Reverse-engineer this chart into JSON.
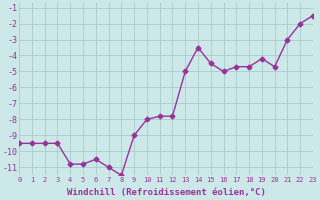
{
  "x": [
    0,
    1,
    2,
    3,
    4,
    5,
    6,
    7,
    8,
    9,
    10,
    11,
    12,
    13,
    14,
    15,
    16,
    17,
    18,
    19,
    20,
    21,
    22,
    23
  ],
  "y": [
    -9.5,
    -9.5,
    -9.5,
    -9.5,
    -10.8,
    -10.8,
    -10.5,
    -11.0,
    -11.5,
    -9.0,
    -8.0,
    -7.8,
    -7.8,
    -5.0,
    -3.5,
    -4.5,
    -5.0,
    -4.7,
    -4.7,
    -4.2,
    -4.7,
    -3.0,
    -2.0,
    -1.5
  ],
  "xlim": [
    0,
    23
  ],
  "ylim": [
    -11.5,
    -0.7
  ],
  "yticks": [
    -11,
    -10,
    -9,
    -8,
    -7,
    -6,
    -5,
    -4,
    -3,
    -2,
    -1
  ],
  "xtick_labels": [
    "0",
    "1",
    "2",
    "3",
    "4",
    "5",
    "6",
    "7",
    "8",
    "9",
    "10",
    "11",
    "12",
    "13",
    "14",
    "15",
    "16",
    "17",
    "18",
    "19",
    "20",
    "21",
    "22",
    "23"
  ],
  "xlabel": "Windchill (Refroidissement éolien,°C)",
  "line_color": "#993399",
  "marker": "D",
  "marker_size": 2.5,
  "bg_color": "#cce8e8",
  "grid_color": "#aacccc",
  "line_width": 1.0,
  "xtick_fontsize": 5.0,
  "ytick_fontsize": 6.0,
  "xlabel_fontsize": 6.5
}
